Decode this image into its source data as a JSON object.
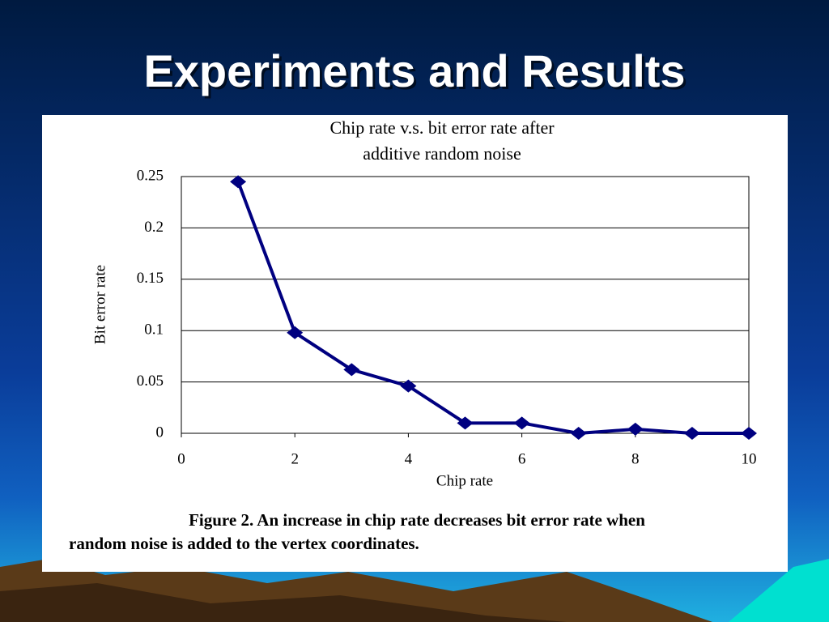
{
  "title": "Experiments and Results",
  "chart_data": {
    "type": "line",
    "title": [
      "Chip rate v.s. bit error rate after",
      "additive random noise"
    ],
    "x_label": "Chip rate",
    "y_label": "Bit error rate",
    "x": [
      1,
      2,
      3,
      4,
      5,
      6,
      7,
      8,
      9,
      10
    ],
    "series": [
      {
        "name": "Bit error rate",
        "color": "#000080",
        "values": [
          0.245,
          0.098,
          0.062,
          0.046,
          0.01,
          0.01,
          0,
          0.004,
          0,
          0
        ]
      }
    ],
    "xlim": [
      0,
      10
    ],
    "xticks": [
      0,
      2,
      4,
      6,
      8,
      10
    ],
    "ylim": [
      0,
      0.25
    ],
    "yticks": [
      0,
      0.05,
      0.1,
      0.15,
      0.2,
      0.25
    ],
    "grid": true,
    "caption": [
      "Figure 2. An increase in chip rate decreases bit error rate when",
      "random noise is added to the vertex coordinates."
    ]
  }
}
